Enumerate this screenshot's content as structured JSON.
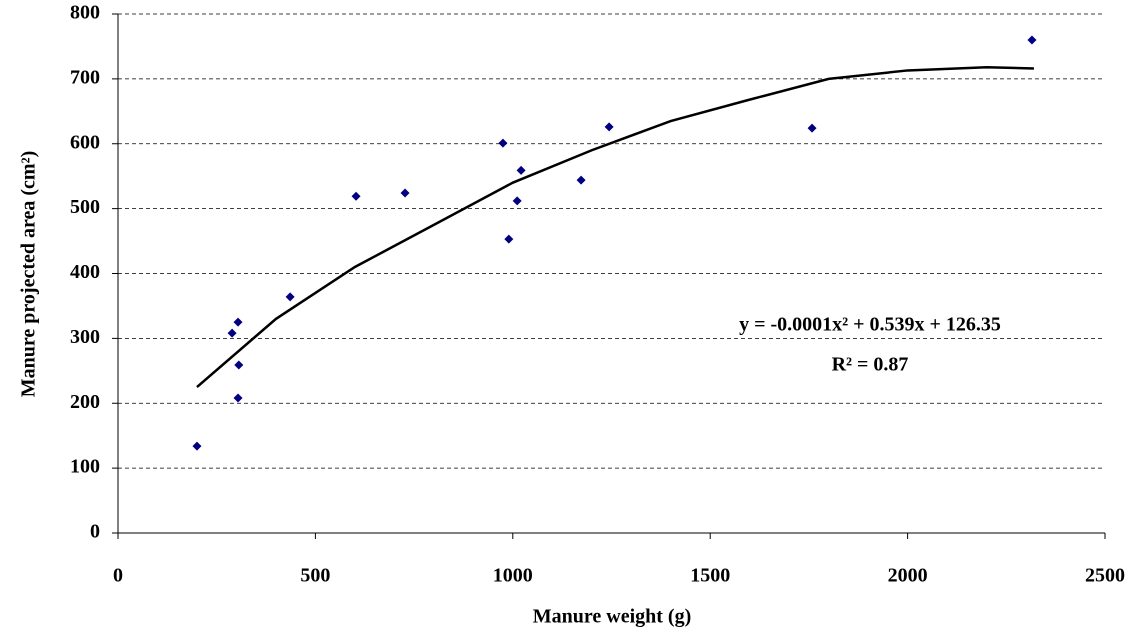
{
  "chart_data": {
    "type": "scatter",
    "x_label": "Manure weight (g)",
    "y_label": "Manure projected area (cm²)",
    "annotations": [
      "y = -0.0001x² + 0.539x + 126.35",
      "R² = 0.87"
    ],
    "xlim": [
      0,
      2500
    ],
    "xticks": [
      0,
      500,
      1000,
      1500,
      2000,
      2500
    ],
    "ylim": [
      0,
      800
    ],
    "yticks": [
      0,
      100,
      200,
      300,
      400,
      500,
      600,
      700,
      800
    ],
    "grid": true,
    "points": {
      "color": "#000080",
      "x": [
        200,
        289,
        304,
        306,
        304,
        436,
        603,
        727,
        975,
        990,
        1011,
        1021,
        1173,
        1244,
        1758,
        2315
      ],
      "y": [
        134,
        308,
        325,
        259,
        208,
        364,
        519,
        524,
        601,
        453,
        512,
        559,
        544,
        626,
        624,
        760
      ]
    },
    "trendline": {
      "color": "#000000",
      "x": [
        200,
        400,
        600,
        800,
        1000,
        1200,
        1400,
        1600,
        1800,
        2000,
        2200,
        2320
      ],
      "y": [
        225,
        330,
        410,
        475,
        540,
        590,
        635,
        668,
        700,
        713,
        718,
        716
      ]
    }
  }
}
